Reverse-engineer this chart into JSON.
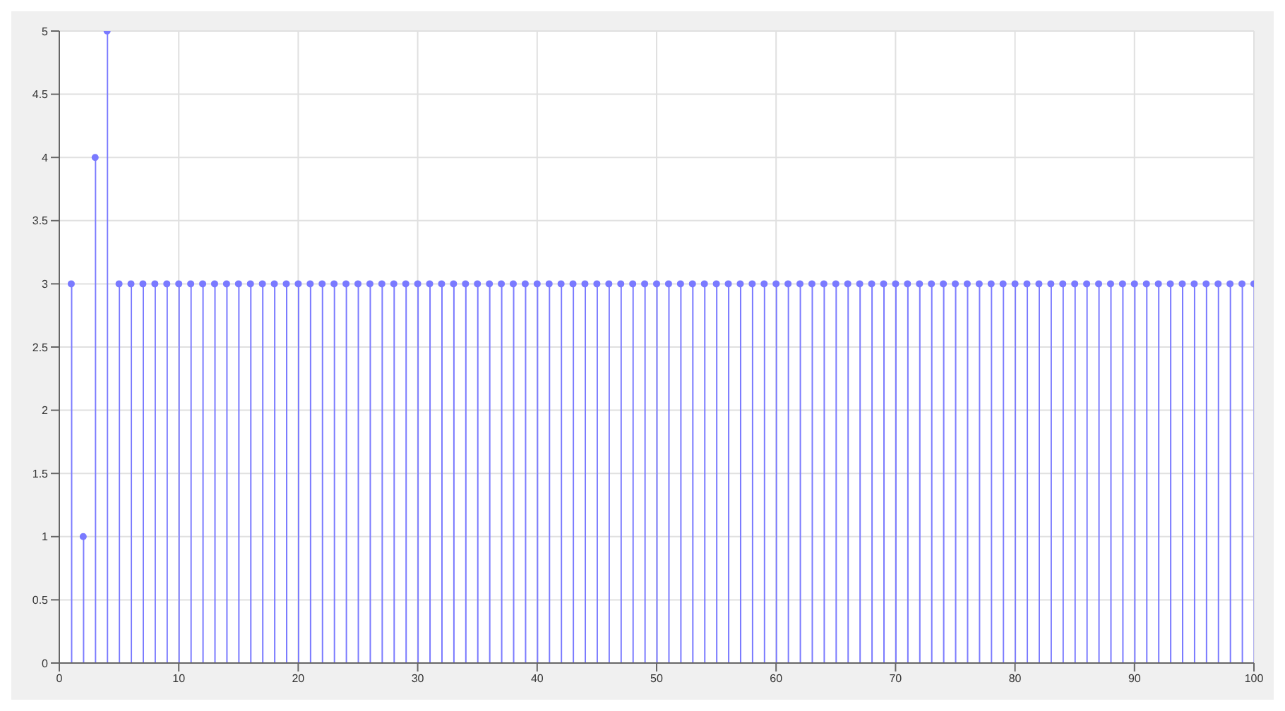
{
  "chart_data": {
    "type": "lollipop",
    "x": [
      1,
      2,
      3,
      4,
      5,
      6,
      7,
      8,
      9,
      10,
      11,
      12,
      13,
      14,
      15,
      16,
      17,
      18,
      19,
      20,
      21,
      22,
      23,
      24,
      25,
      26,
      27,
      28,
      29,
      30,
      31,
      32,
      33,
      34,
      35,
      36,
      37,
      38,
      39,
      40,
      41,
      42,
      43,
      44,
      45,
      46,
      47,
      48,
      49,
      50,
      51,
      52,
      53,
      54,
      55,
      56,
      57,
      58,
      59,
      60,
      61,
      62,
      63,
      64,
      65,
      66,
      67,
      68,
      69,
      70,
      71,
      72,
      73,
      74,
      75,
      76,
      77,
      78,
      79,
      80,
      81,
      82,
      83,
      84,
      85,
      86,
      87,
      88,
      89,
      90,
      91,
      92,
      93,
      94,
      95,
      96,
      97,
      98,
      99,
      100
    ],
    "series": [
      {
        "color": "#7a7aff",
        "values": [
          3,
          1,
          4,
          5,
          3,
          3,
          3,
          3,
          3,
          3,
          3,
          3,
          3,
          3,
          3,
          3,
          3,
          3,
          3,
          3,
          3,
          3,
          3,
          3,
          3,
          3,
          3,
          3,
          3,
          3,
          3,
          3,
          3,
          3,
          3,
          3,
          3,
          3,
          3,
          3,
          3,
          3,
          3,
          3,
          3,
          3,
          3,
          3,
          3,
          3,
          3,
          3,
          3,
          3,
          3,
          3,
          3,
          3,
          3,
          3,
          3,
          3,
          3,
          3,
          3,
          3,
          3,
          3,
          3,
          3,
          3,
          3,
          3,
          3,
          3,
          3,
          3,
          3,
          3,
          3,
          3,
          3,
          3,
          3,
          3,
          3,
          3,
          3,
          3,
          3,
          3,
          3,
          3,
          3,
          3,
          3,
          3,
          3,
          3,
          3
        ]
      }
    ],
    "xlim": [
      0,
      100
    ],
    "xticks": [
      0,
      10,
      20,
      30,
      40,
      50,
      60,
      70,
      80,
      90,
      100
    ],
    "ylim": [
      0,
      5
    ],
    "yticks": [
      0,
      0.5,
      1,
      1.5,
      2,
      2.5,
      3,
      3.5,
      4,
      4.5,
      5
    ],
    "grid": true,
    "marker": "circle"
  }
}
